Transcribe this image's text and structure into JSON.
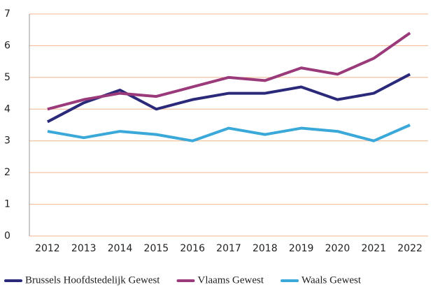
{
  "chart_data": {
    "type": "line",
    "categories": [
      "2012",
      "2013",
      "2014",
      "2015",
      "2016",
      "2017",
      "2018",
      "2019",
      "2020",
      "2021",
      "2022"
    ],
    "series": [
      {
        "name": "Brussels Hoofdstedelijk Gewest",
        "color": "#2b2a7a",
        "values": [
          3.6,
          4.2,
          4.6,
          4.0,
          4.3,
          4.5,
          4.5,
          4.7,
          4.3,
          4.5,
          5.1
        ]
      },
      {
        "name": "Vlaams Gewest",
        "color": "#9b3a7a",
        "values": [
          4.0,
          4.3,
          4.5,
          4.4,
          4.7,
          5.0,
          4.9,
          5.3,
          5.1,
          5.6,
          6.4
        ]
      },
      {
        "name": "Waals Gewest",
        "color": "#3aa8d8",
        "values": [
          3.3,
          3.1,
          3.3,
          3.2,
          3.0,
          3.4,
          3.2,
          3.4,
          3.3,
          3.0,
          3.5
        ]
      }
    ],
    "ylim": [
      0,
      7
    ],
    "yticks": [
      0,
      1,
      2,
      3,
      4,
      5,
      6,
      7
    ],
    "grid": true,
    "legend": "bottom"
  }
}
